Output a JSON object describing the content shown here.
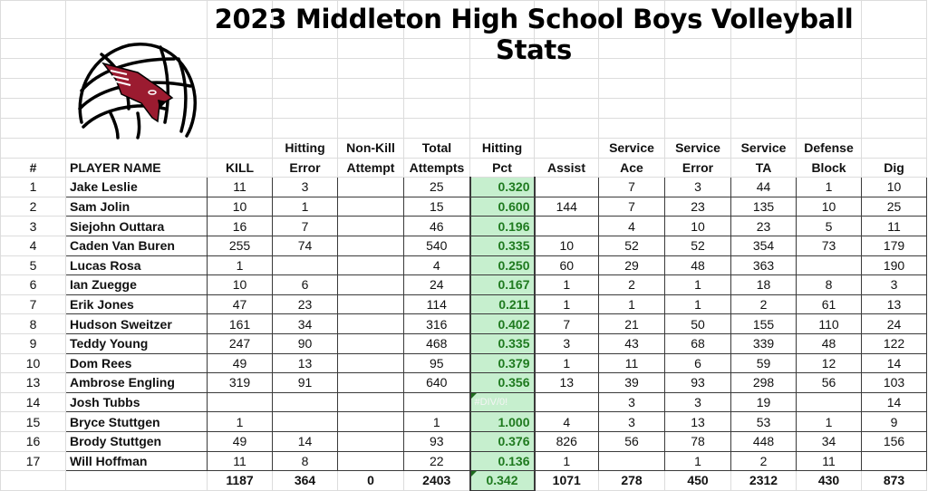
{
  "title": "2023 Middleton High School Boys Volleyball Stats",
  "logo": {
    "name": "volleyball-cardinal-logo",
    "colors": {
      "ball": "#000000",
      "bird": "#9b1b30"
    }
  },
  "colors": {
    "pct_fill": "#c6efce",
    "pct_text": "#1f7a1f"
  },
  "headers_top": [
    "",
    "",
    "",
    "Hitting",
    "Non-Kill",
    "Total",
    "Hitting",
    "",
    "Service",
    "Service",
    "Service",
    "Defense",
    ""
  ],
  "headers_bottom": [
    "#",
    "PLAYER NAME",
    "KILL",
    "Error",
    "Attempt",
    "Attempts",
    "Pct",
    "Assist",
    "Ace",
    "Error",
    "TA",
    "Block",
    "Dig"
  ],
  "players": [
    {
      "num": "1",
      "name": "Jake Leslie",
      "kill": "11",
      "hit_err": "3",
      "nonkill": "",
      "total": "25",
      "pct": "0.320",
      "assist": "",
      "ace": "7",
      "serv_err": "3",
      "ta": "44",
      "block": "1",
      "dig": "10"
    },
    {
      "num": "2",
      "name": "Sam Jolin",
      "kill": "10",
      "hit_err": "1",
      "nonkill": "",
      "total": "15",
      "pct": "0.600",
      "assist": "144",
      "ace": "7",
      "serv_err": "23",
      "ta": "135",
      "block": "10",
      "dig": "25"
    },
    {
      "num": "3",
      "name": "Siejohn Outtara",
      "kill": "16",
      "hit_err": "7",
      "nonkill": "",
      "total": "46",
      "pct": "0.196",
      "assist": "",
      "ace": "4",
      "serv_err": "10",
      "ta": "23",
      "block": "5",
      "dig": "11"
    },
    {
      "num": "4",
      "name": "Caden Van Buren",
      "kill": "255",
      "hit_err": "74",
      "nonkill": "",
      "total": "540",
      "pct": "0.335",
      "assist": "10",
      "ace": "52",
      "serv_err": "52",
      "ta": "354",
      "block": "73",
      "dig": "179"
    },
    {
      "num": "5",
      "name": "Lucas Rosa",
      "kill": "1",
      "hit_err": "",
      "nonkill": "",
      "total": "4",
      "pct": "0.250",
      "assist": "60",
      "ace": "29",
      "serv_err": "48",
      "ta": "363",
      "block": "",
      "dig": "190"
    },
    {
      "num": "6",
      "name": "Ian Zuegge",
      "kill": "10",
      "hit_err": "6",
      "nonkill": "",
      "total": "24",
      "pct": "0.167",
      "assist": "1",
      "ace": "2",
      "serv_err": "1",
      "ta": "18",
      "block": "8",
      "dig": "3"
    },
    {
      "num": "7",
      "name": "Erik Jones",
      "kill": "47",
      "hit_err": "23",
      "nonkill": "",
      "total": "114",
      "pct": "0.211",
      "assist": "1",
      "ace": "1",
      "serv_err": "1",
      "ta": "2",
      "block": "61",
      "dig": "13"
    },
    {
      "num": "8",
      "name": "Hudson Sweitzer",
      "kill": "161",
      "hit_err": "34",
      "nonkill": "",
      "total": "316",
      "pct": "0.402",
      "assist": "7",
      "ace": "21",
      "serv_err": "50",
      "ta": "155",
      "block": "110",
      "dig": "24"
    },
    {
      "num": "9",
      "name": "Teddy Young",
      "kill": "247",
      "hit_err": "90",
      "nonkill": "",
      "total": "468",
      "pct": "0.335",
      "assist": "3",
      "ace": "43",
      "serv_err": "68",
      "ta": "339",
      "block": "48",
      "dig": "122"
    },
    {
      "num": "10",
      "name": "Dom Rees",
      "kill": "49",
      "hit_err": "13",
      "nonkill": "",
      "total": "95",
      "pct": "0.379",
      "assist": "1",
      "ace": "11",
      "serv_err": "6",
      "ta": "59",
      "block": "12",
      "dig": "14"
    },
    {
      "num": "13",
      "name": "Ambrose Engling",
      "kill": "319",
      "hit_err": "91",
      "nonkill": "",
      "total": "640",
      "pct": "0.356",
      "assist": "13",
      "ace": "39",
      "serv_err": "93",
      "ta": "298",
      "block": "56",
      "dig": "103"
    },
    {
      "num": "14",
      "name": "Josh Tubbs",
      "kill": "",
      "hit_err": "",
      "nonkill": "",
      "total": "",
      "pct": "#DIV/0!",
      "assist": "",
      "ace": "3",
      "serv_err": "3",
      "ta": "19",
      "block": "",
      "dig": "14"
    },
    {
      "num": "15",
      "name": "Bryce Stuttgen",
      "kill": "1",
      "hit_err": "",
      "nonkill": "",
      "total": "1",
      "pct": "1.000",
      "assist": "4",
      "ace": "3",
      "serv_err": "13",
      "ta": "53",
      "block": "1",
      "dig": "9"
    },
    {
      "num": "16",
      "name": "Brody Stuttgen",
      "kill": "49",
      "hit_err": "14",
      "nonkill": "",
      "total": "93",
      "pct": "0.376",
      "assist": "826",
      "ace": "56",
      "serv_err": "78",
      "ta": "448",
      "block": "34",
      "dig": "156"
    },
    {
      "num": "17",
      "name": "Will Hoffman",
      "kill": "11",
      "hit_err": "8",
      "nonkill": "",
      "total": "22",
      "pct": "0.136",
      "assist": "1",
      "ace": "",
      "serv_err": "1",
      "ta": "2",
      "block": "11",
      "dig": ""
    }
  ],
  "totals": {
    "kill": "1187",
    "hit_err": "364",
    "nonkill": "0",
    "total": "2403",
    "pct": "0.342",
    "assist": "1071",
    "ace": "278",
    "serv_err": "450",
    "ta": "2312",
    "block": "430",
    "dig": "873"
  }
}
